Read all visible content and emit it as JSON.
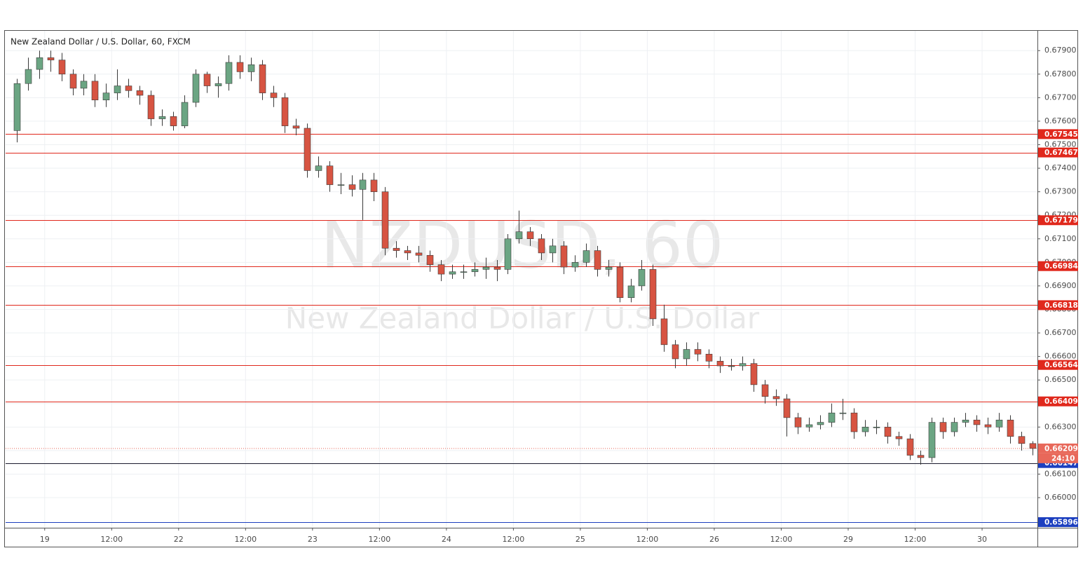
{
  "chart_data": {
    "type": "candlestick",
    "title": "New Zealand Dollar / U.S. Dollar, 60, FXCM",
    "watermark": "NZDUSD, 60",
    "watermark_subtitle": "New Zealand Dollar / U.S. Dollar",
    "categories": [
      null,
      null,
      null,
      "19",
      null,
      null,
      null,
      null,
      null,
      "12:00",
      null,
      null,
      null,
      null,
      null,
      "22",
      null,
      null,
      null,
      null,
      null,
      "12:00",
      null,
      null,
      null,
      null,
      null,
      "23",
      null,
      null,
      null,
      null,
      null,
      "12:00",
      null,
      null,
      null,
      null,
      null,
      "24",
      null,
      null,
      null,
      null,
      null,
      "12:00",
      null,
      null,
      null,
      null,
      null,
      "25",
      null,
      null,
      null,
      null,
      null,
      "12:00",
      null,
      null,
      null,
      null,
      null,
      "26",
      null,
      null,
      null,
      null,
      null,
      "12:00",
      null,
      null,
      null,
      null,
      null,
      "29",
      null,
      null,
      null,
      null,
      null,
      "12:00",
      null,
      null,
      null,
      null,
      null,
      "30",
      null,
      null,
      null,
      null
    ],
    "open": [
      0.6756,
      0.6776,
      0.6782,
      0.6787,
      0.6786,
      0.678,
      0.6774,
      0.6777,
      0.6769,
      0.6772,
      0.6775,
      0.6773,
      0.6771,
      0.6761,
      0.6762,
      0.6758,
      0.6768,
      0.678,
      0.6775,
      0.6776,
      0.6785,
      0.6781,
      0.6784,
      0.6772,
      0.677,
      0.6758,
      0.6757,
      0.6739,
      0.6741,
      0.6733,
      0.6733,
      0.6731,
      0.6735,
      0.673,
      0.6706,
      0.6705,
      0.6704,
      0.6703,
      0.6699,
      0.6695,
      0.6696,
      0.6696,
      0.6697,
      0.6698,
      0.6697,
      0.671,
      0.6713,
      0.671,
      0.6704,
      0.6707,
      0.6698,
      0.67,
      0.6705,
      0.6697,
      0.6698,
      0.6685,
      0.669,
      0.6697,
      0.6676,
      0.6665,
      0.6659,
      0.6663,
      0.6661,
      0.6658,
      0.6656,
      0.6656,
      0.6657,
      0.6648,
      0.6643,
      0.6642,
      0.6634,
      0.663,
      0.6631,
      0.6632,
      0.6636,
      0.6636,
      0.6628,
      0.663,
      0.663,
      0.6626,
      0.6625,
      0.6618,
      0.6617,
      0.6632,
      0.6628,
      0.6632,
      0.6633,
      0.6631,
      0.663,
      0.6633,
      0.6626,
      0.6623
    ],
    "high": [
      0.6778,
      0.6787,
      0.679,
      0.679,
      0.6789,
      0.6782,
      0.678,
      0.678,
      0.6776,
      0.6782,
      0.6778,
      0.6775,
      0.6773,
      0.6765,
      0.6764,
      0.6771,
      0.6782,
      0.6781,
      0.6779,
      0.6788,
      0.6788,
      0.6787,
      0.6786,
      0.6775,
      0.6772,
      0.6761,
      0.6759,
      0.6745,
      0.6743,
      0.6738,
      0.6737,
      0.6738,
      0.6738,
      0.6732,
      0.6709,
      0.6707,
      0.6707,
      0.6705,
      0.6701,
      0.6699,
      0.6699,
      0.67,
      0.6702,
      0.6701,
      0.6712,
      0.6722,
      0.6715,
      0.6712,
      0.671,
      0.6709,
      0.6703,
      0.6708,
      0.6707,
      0.6701,
      0.67,
      0.6693,
      0.6701,
      0.6699,
      0.6682,
      0.6667,
      0.6666,
      0.6666,
      0.6663,
      0.666,
      0.6659,
      0.666,
      0.6659,
      0.665,
      0.6646,
      0.6644,
      0.6636,
      0.6634,
      0.6635,
      0.664,
      0.6642,
      0.6638,
      0.6633,
      0.6633,
      0.6632,
      0.6628,
      0.6627,
      0.662,
      0.6634,
      0.6634,
      0.6634,
      0.6636,
      0.6635,
      0.6634,
      0.6636,
      0.6635,
      0.6628,
      0.6624
    ],
    "low": [
      0.6751,
      0.6773,
      0.6778,
      0.6781,
      0.6777,
      0.6771,
      0.6771,
      0.6766,
      0.6766,
      0.6769,
      0.677,
      0.6767,
      0.6758,
      0.6758,
      0.6756,
      0.6757,
      0.6766,
      0.6772,
      0.677,
      0.6773,
      0.6778,
      0.6777,
      0.6769,
      0.6766,
      0.6755,
      0.6754,
      0.6736,
      0.6736,
      0.673,
      0.6729,
      0.6728,
      0.6718,
      0.6726,
      0.6703,
      0.6702,
      0.6701,
      0.67,
      0.6696,
      0.6692,
      0.6693,
      0.6693,
      0.6694,
      0.6693,
      0.6692,
      0.6695,
      0.6708,
      0.6707,
      0.6701,
      0.67,
      0.6695,
      0.6696,
      0.6698,
      0.6694,
      0.6694,
      0.6683,
      0.6683,
      0.6688,
      0.6673,
      0.6662,
      0.6655,
      0.6656,
      0.6658,
      0.6655,
      0.6653,
      0.6654,
      0.6654,
      0.6645,
      0.664,
      0.6639,
      0.6626,
      0.6627,
      0.6628,
      0.6629,
      0.663,
      0.6633,
      0.6625,
      0.6626,
      0.6627,
      0.6623,
      0.6622,
      0.6616,
      0.6614,
      0.6615,
      0.6625,
      0.6626,
      0.663,
      0.6628,
      0.6627,
      0.6628,
      0.6623,
      0.662,
      0.6618
    ],
    "close": [
      0.6776,
      0.6782,
      0.6787,
      0.6786,
      0.678,
      0.6774,
      0.6777,
      0.6769,
      0.6772,
      0.6775,
      0.6773,
      0.6771,
      0.6761,
      0.6762,
      0.6758,
      0.6768,
      0.678,
      0.6775,
      0.6776,
      0.6785,
      0.6781,
      0.6784,
      0.6772,
      0.677,
      0.6758,
      0.6757,
      0.6739,
      0.6741,
      0.6733,
      0.6733,
      0.6731,
      0.6735,
      0.673,
      0.6706,
      0.6705,
      0.6704,
      0.6703,
      0.6699,
      0.6695,
      0.6696,
      0.6696,
      0.6697,
      0.6698,
      0.6697,
      0.671,
      0.6713,
      0.671,
      0.6704,
      0.6707,
      0.6698,
      0.67,
      0.6705,
      0.6697,
      0.6698,
      0.6685,
      0.669,
      0.6697,
      0.6676,
      0.6665,
      0.6659,
      0.6663,
      0.6661,
      0.6658,
      0.6656,
      0.6656,
      0.6657,
      0.6648,
      0.6643,
      0.6642,
      0.6634,
      0.663,
      0.6631,
      0.6632,
      0.6636,
      0.6636,
      0.6628,
      0.663,
      0.663,
      0.6626,
      0.6625,
      0.6618,
      0.6617,
      0.6632,
      0.6628,
      0.6632,
      0.6633,
      0.6631,
      0.663,
      0.6633,
      0.6626,
      0.6623,
      0.66209
    ],
    "up_color": "#6ba583",
    "down_color": "#d75442",
    "ylim": [
      0.65872,
      0.67984
    ],
    "yticks": [
      {
        "value": 0.679,
        "label": "0.67900"
      },
      {
        "value": 0.678,
        "label": "0.67800"
      },
      {
        "value": 0.677,
        "label": "0.67700"
      },
      {
        "value": 0.676,
        "label": "0.67600"
      },
      {
        "value": 0.675,
        "label": "0.67500"
      },
      {
        "value": 0.674,
        "label": "0.67400"
      },
      {
        "value": 0.673,
        "label": "0.67300"
      },
      {
        "value": 0.672,
        "label": "0.67200"
      },
      {
        "value": 0.671,
        "label": "0.67100"
      },
      {
        "value": 0.67,
        "label": "0.67000"
      },
      {
        "value": 0.669,
        "label": "0.66900"
      },
      {
        "value": 0.668,
        "label": "0.66800"
      },
      {
        "value": 0.667,
        "label": "0.66700"
      },
      {
        "value": 0.666,
        "label": "0.66600"
      },
      {
        "value": 0.665,
        "label": "0.66500"
      },
      {
        "value": 0.664,
        "label": "0.66400"
      },
      {
        "value": 0.663,
        "label": "0.66300"
      },
      {
        "value": 0.662,
        "label": "0.66200"
      },
      {
        "value": 0.661,
        "label": "0.66100"
      },
      {
        "value": 0.66,
        "label": "0.66000"
      }
    ],
    "grid": true,
    "hlines": [
      {
        "value": 0.67545,
        "color": "#e0281c"
      },
      {
        "value": 0.67467,
        "color": "#e0281c"
      },
      {
        "value": 0.67179,
        "color": "#e0281c"
      },
      {
        "value": 0.66984,
        "color": "#e0281c"
      },
      {
        "value": 0.66818,
        "color": "#e0281c"
      },
      {
        "value": 0.66564,
        "color": "#e0281c"
      },
      {
        "value": 0.66409,
        "color": "#e0281c"
      },
      {
        "value": 0.66147,
        "color": "#1a1a2e",
        "label_color": "#1c3fbf"
      },
      {
        "value": 0.65896,
        "color": "#1c3fbf"
      }
    ],
    "last_price": 0.66209,
    "last_price_color": "#e8685a",
    "countdown": "24:10"
  }
}
